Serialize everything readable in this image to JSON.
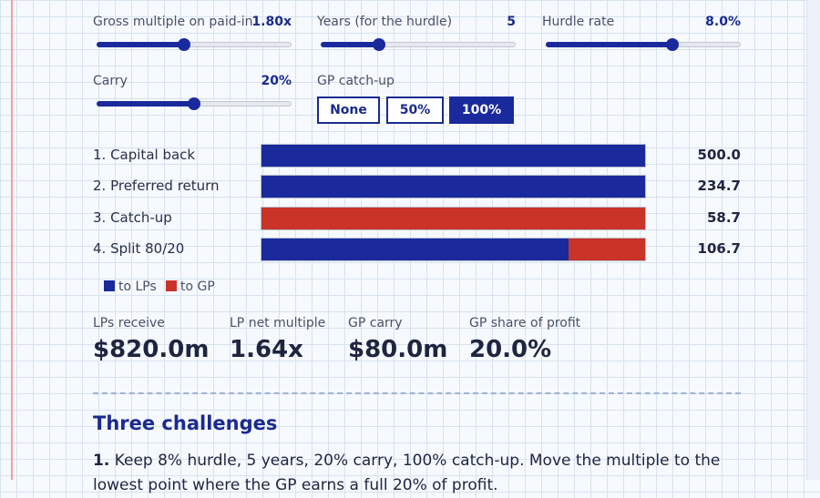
{
  "controls": {
    "multiple": {
      "label": "Gross multiple on paid-in",
      "value": "1.80x",
      "fraction": 0.45
    },
    "years": {
      "label": "Years (for the hurdle)",
      "value": "5",
      "fraction": 0.3
    },
    "hurdle": {
      "label": "Hurdle rate",
      "value": "8.0%",
      "fraction": 0.65
    },
    "carry": {
      "label": "Carry",
      "value": "20%",
      "fraction": 0.5
    },
    "catchup": {
      "label": "GP catch-up",
      "options": [
        "None",
        "50%",
        "100%"
      ],
      "selected": "100%"
    }
  },
  "waterfall": {
    "rows": [
      {
        "label": "1. Capital back",
        "value": "500.0",
        "lp_share": 1.0
      },
      {
        "label": "2. Preferred return",
        "value": "234.7",
        "lp_share": 1.0
      },
      {
        "label": "3. Catch-up",
        "value": "58.7",
        "lp_share": 0.0
      },
      {
        "label": "4. Split 80/20",
        "value": "106.7",
        "lp_share": 0.8
      }
    ],
    "legend": {
      "lp": "to LPs",
      "gp": "to GP"
    },
    "colors": {
      "lp": "#1a2a9c",
      "gp": "#c93328"
    }
  },
  "stats": [
    {
      "label": "LPs receive",
      "value": "$820.0m"
    },
    {
      "label": "LP net multiple",
      "value": "1.64x"
    },
    {
      "label": "GP carry",
      "value": "$80.0m"
    },
    {
      "label": "GP share of profit",
      "value": "20.0%"
    }
  ],
  "challenges": {
    "title": "Three challenges",
    "items": [
      {
        "number": "1.",
        "text": " Keep 8% hurdle, 5 years, 20% carry, 100% catch-up. Move the multiple to the lowest point where the GP earns a full 20% of profit."
      }
    ]
  }
}
